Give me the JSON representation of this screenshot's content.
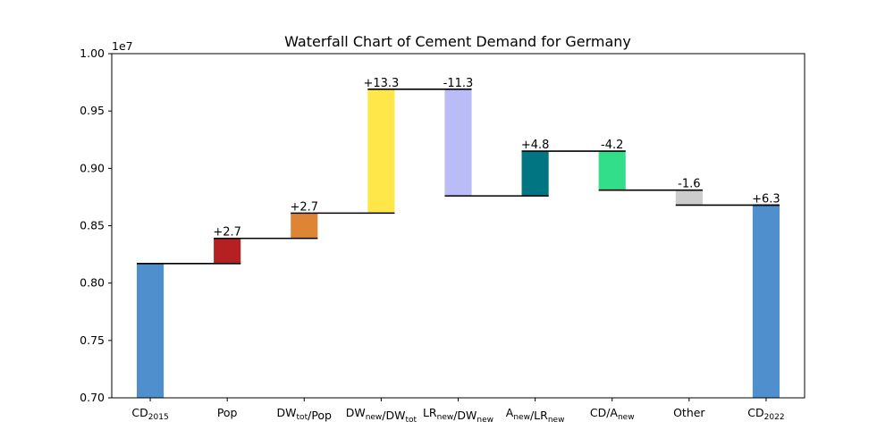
{
  "chart_data": {
    "type": "bar",
    "title": "Waterfall Chart of Cement Demand for Germany",
    "xlabel": "",
    "ylabel": "",
    "ylim": [
      0.7,
      1.0
    ],
    "y_multiplier": "1e7",
    "yticks": [
      "0.70",
      "0.75",
      "0.80",
      "0.85",
      "0.90",
      "0.95",
      "1.00"
    ],
    "grid": false,
    "legend": "none",
    "categories": [
      {
        "base": "CD",
        "sub": "2015"
      },
      {
        "base": "Pop",
        "sub": ""
      },
      {
        "base": "DW",
        "sub": "tot",
        "tail": "/Pop"
      },
      {
        "base": "DW",
        "sub": "new",
        "tail": "/DW",
        "sub2": "tot"
      },
      {
        "base": "LR",
        "sub": "new",
        "tail": "/DW",
        "sub2": "new"
      },
      {
        "base": "A",
        "sub": "new",
        "tail": "/LR",
        "sub2": "new"
      },
      {
        "base": "CD/A",
        "sub": "new"
      },
      {
        "base": "Other",
        "sub": ""
      },
      {
        "base": "CD",
        "sub": "2022"
      }
    ],
    "bars": [
      {
        "bottom": 0.7,
        "top": 0.817,
        "color": "#4f8fce",
        "label": ""
      },
      {
        "bottom": 0.817,
        "top": 0.839,
        "color": "#b52022",
        "label": "+2.7"
      },
      {
        "bottom": 0.839,
        "top": 0.861,
        "color": "#dd8435",
        "label": "+2.7"
      },
      {
        "bottom": 0.861,
        "top": 0.969,
        "color": "#ffe74a",
        "label": "+13.3"
      },
      {
        "bottom": 0.876,
        "top": 0.969,
        "color": "#b9bcf6",
        "label": "-11.3"
      },
      {
        "bottom": 0.876,
        "top": 0.915,
        "color": "#017581",
        "label": "+4.8"
      },
      {
        "bottom": 0.881,
        "top": 0.915,
        "color": "#32de8a",
        "label": "-4.2"
      },
      {
        "bottom": 0.868,
        "top": 0.881,
        "color": "#cccccc",
        "label": "-1.6"
      },
      {
        "bottom": 0.7,
        "top": 0.868,
        "color": "#4f8fce",
        "label": "+6.3"
      }
    ],
    "connectors": [
      0.817,
      0.839,
      0.861,
      0.969,
      0.876,
      0.915,
      0.881,
      0.868,
      0.868
    ]
  }
}
